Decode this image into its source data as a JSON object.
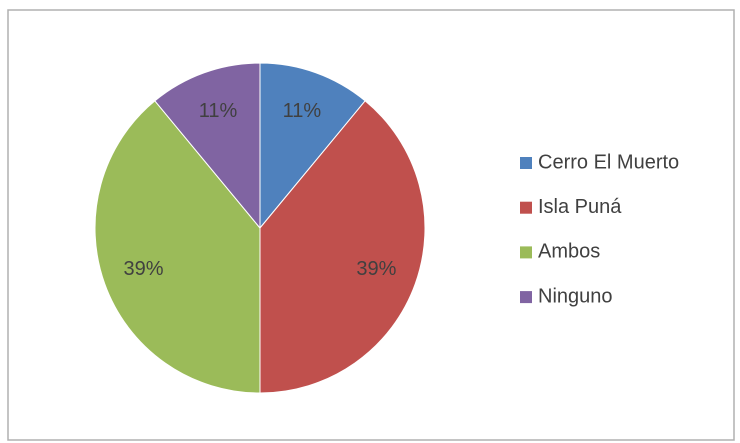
{
  "chart_data": {
    "type": "pie",
    "categories": [
      "Cerro El Muerto",
      "Isla Puná",
      "Ambos",
      "Ninguno"
    ],
    "values": [
      11,
      39,
      39,
      11
    ],
    "value_labels": [
      "11%",
      "39%",
      "39%",
      "11%"
    ],
    "colors": [
      "#4f81bd",
      "#c0504d",
      "#9bbb59",
      "#8064a2"
    ],
    "legend": "right"
  }
}
